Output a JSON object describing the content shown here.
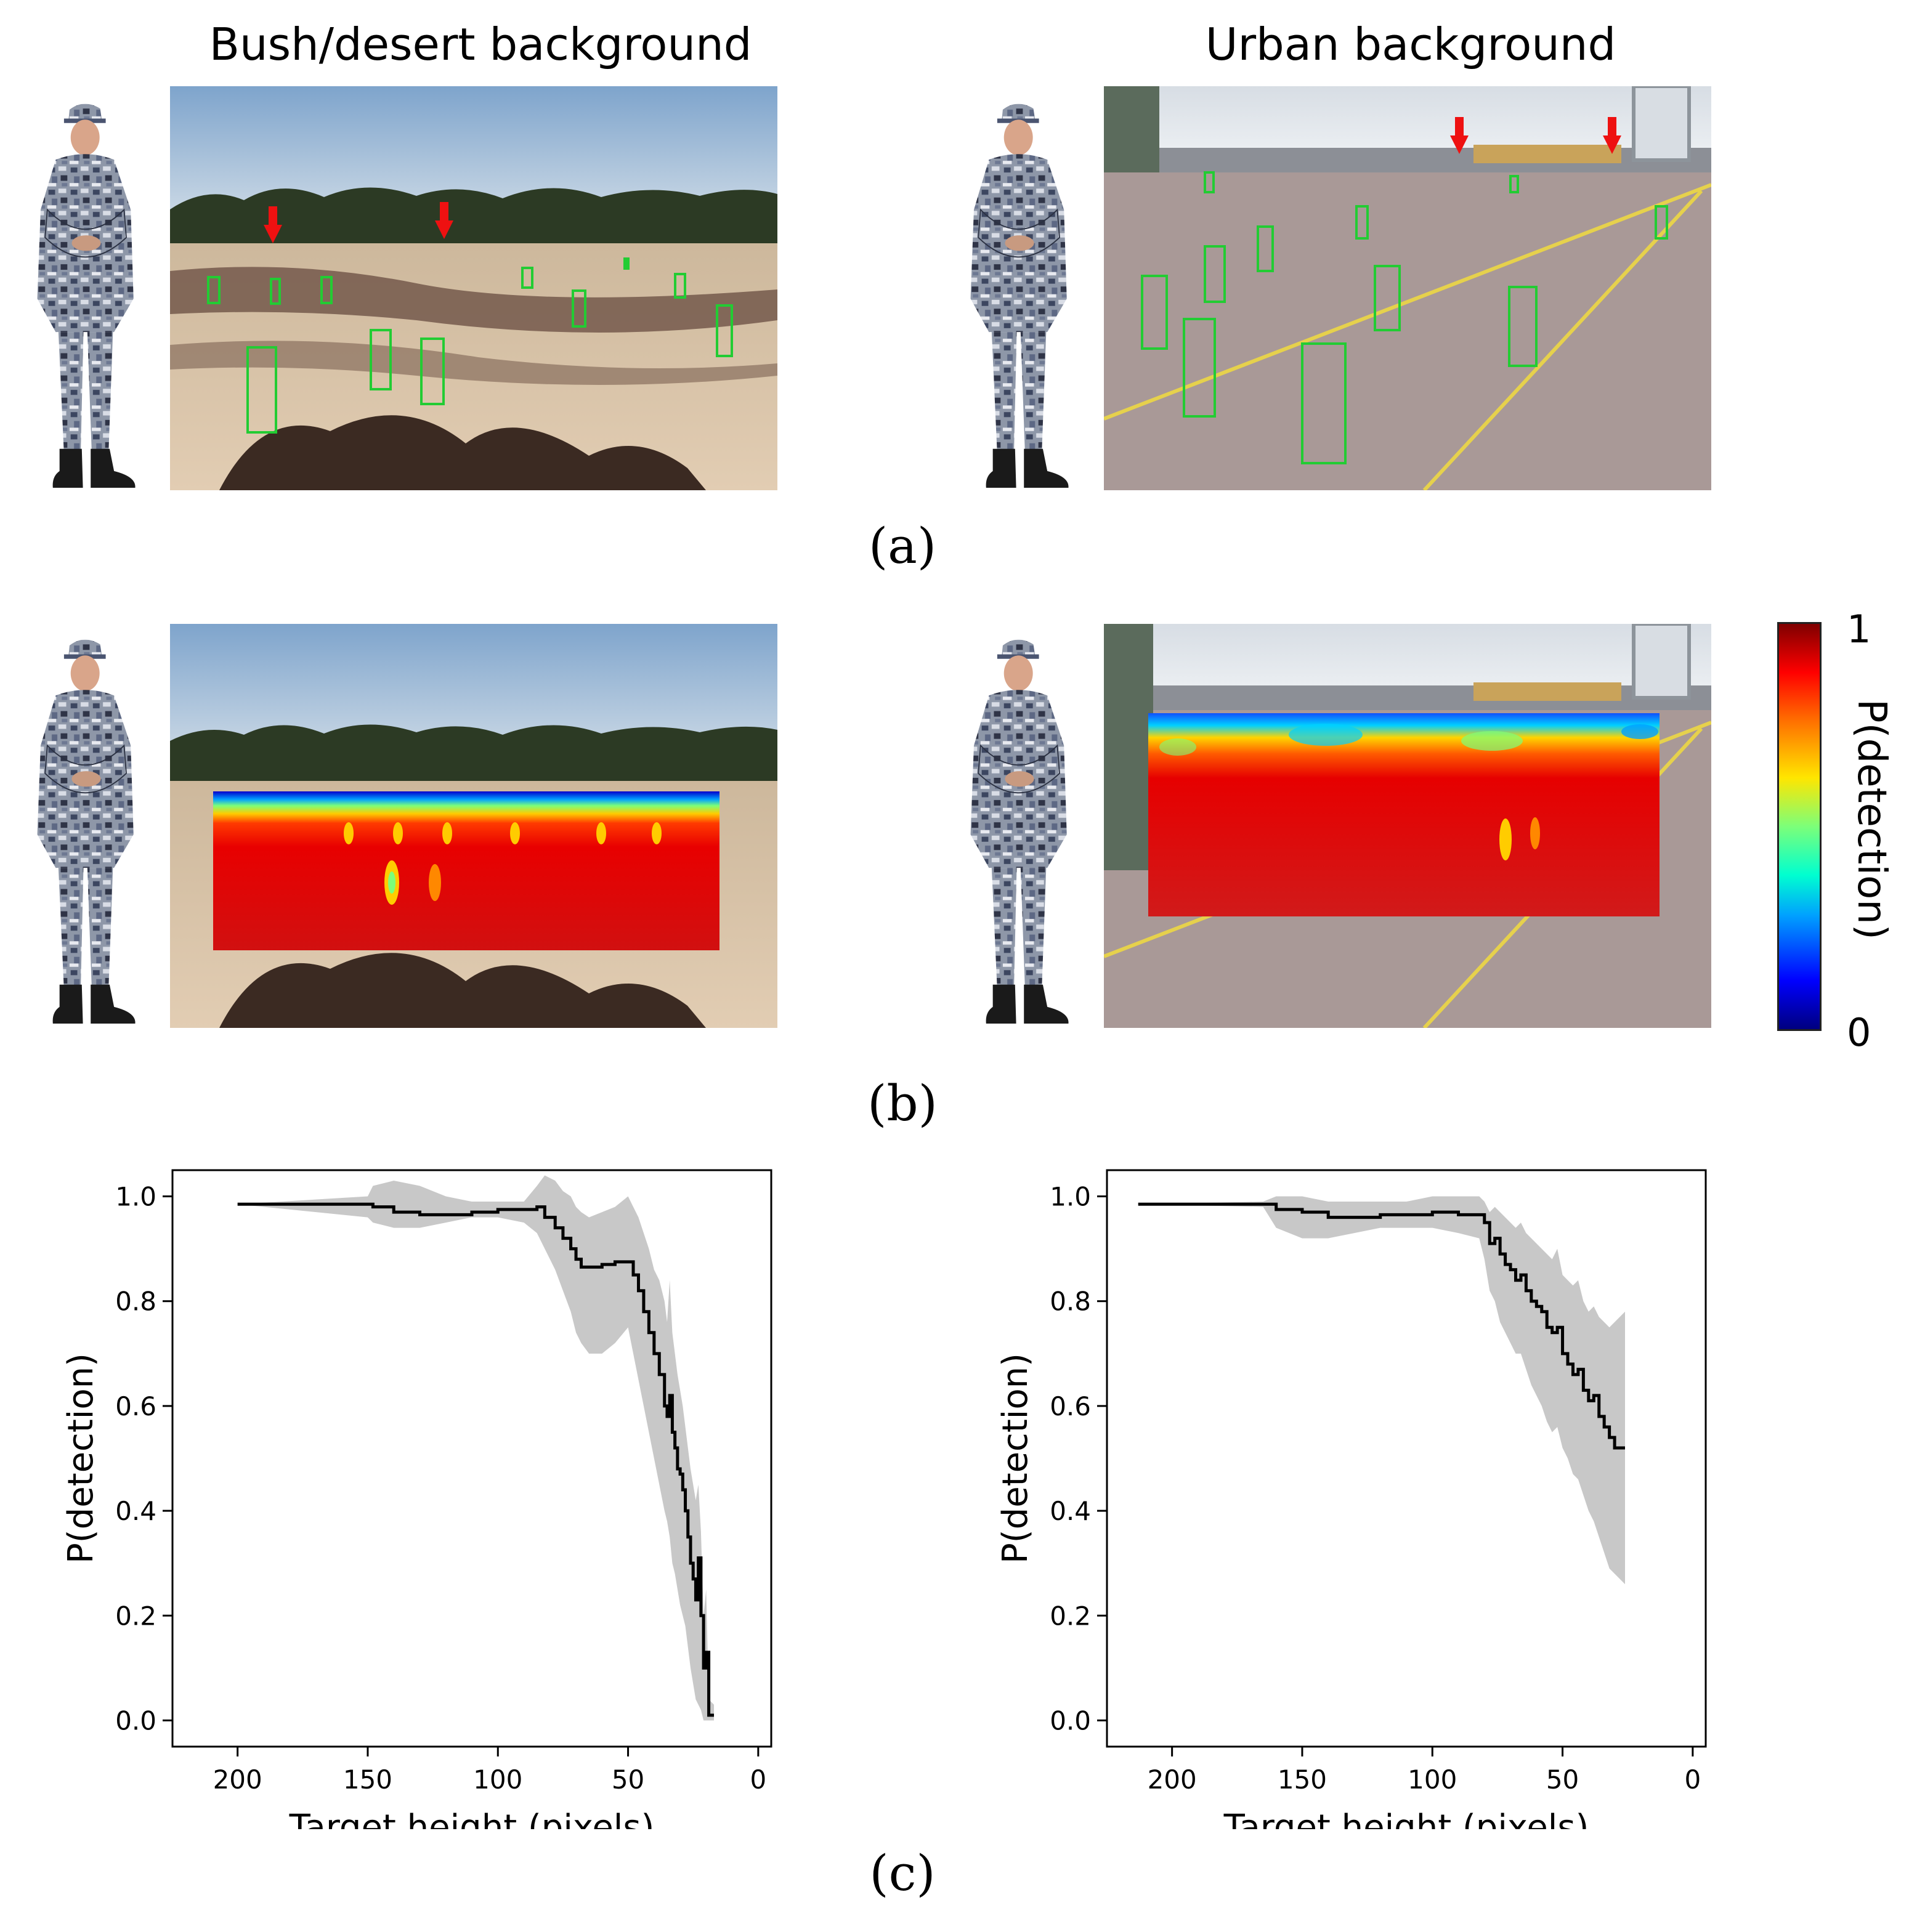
{
  "titles": {
    "left": "Bush/desert background",
    "right": "Urban background"
  },
  "panel_labels": {
    "a": "(a)",
    "b": "(b)",
    "c": "(c)"
  },
  "colorbar": {
    "label": "P(detection)",
    "max": "1",
    "min": "0",
    "colormap": "jet"
  },
  "icons": [
    "soldier-figure",
    "red-arrow-marker",
    "green-target-box"
  ],
  "colors": {
    "target_box": "#22cc33",
    "arrow": "#ee1111",
    "curve": "#000000",
    "band": "#c8c8c8"
  },
  "chart_data": [
    {
      "type": "line",
      "title": "",
      "xlabel": "Target height (pixels)",
      "ylabel": "P(detection)",
      "xlim": [
        225,
        -5
      ],
      "ylim": [
        -0.05,
        1.05
      ],
      "x_ticks": [
        200,
        150,
        100,
        50,
        0
      ],
      "y_ticks": [
        "0.0",
        "0.2",
        "0.4",
        "0.6",
        "0.8",
        "1.0"
      ],
      "series": [
        {
          "x": [
            200,
            150,
            148,
            140,
            130,
            120,
            110,
            100,
            90,
            85,
            82,
            78,
            75,
            72,
            70,
            68,
            65,
            60,
            55,
            50,
            48,
            46,
            44,
            42,
            40,
            38,
            36,
            35,
            34,
            33,
            32,
            31,
            30,
            29,
            28,
            27,
            26,
            25,
            24,
            23,
            22,
            21,
            20,
            19,
            17
          ],
          "y": [
            0.985,
            0.985,
            0.98,
            0.97,
            0.965,
            0.965,
            0.97,
            0.975,
            0.975,
            0.98,
            0.96,
            0.94,
            0.92,
            0.9,
            0.88,
            0.865,
            0.865,
            0.87,
            0.875,
            0.875,
            0.85,
            0.82,
            0.78,
            0.74,
            0.7,
            0.66,
            0.6,
            0.58,
            0.62,
            0.55,
            0.52,
            0.48,
            0.47,
            0.44,
            0.4,
            0.35,
            0.3,
            0.27,
            0.23,
            0.31,
            0.2,
            0.1,
            0.13,
            0.01,
            0.01
          ],
          "lower": [
            0.985,
            0.96,
            0.95,
            0.94,
            0.94,
            0.95,
            0.96,
            0.96,
            0.95,
            0.93,
            0.9,
            0.86,
            0.82,
            0.78,
            0.74,
            0.72,
            0.7,
            0.7,
            0.72,
            0.75,
            0.7,
            0.65,
            0.6,
            0.55,
            0.5,
            0.45,
            0.4,
            0.38,
            0.35,
            0.3,
            0.28,
            0.25,
            0.22,
            0.2,
            0.18,
            0.14,
            0.1,
            0.07,
            0.04,
            0.03,
            0.02,
            0.0,
            0.0,
            0.0,
            0.0
          ],
          "upper": [
            0.985,
            1.0,
            1.02,
            1.03,
            1.02,
            1.0,
            0.99,
            0.99,
            0.99,
            1.02,
            1.04,
            1.03,
            1.01,
            1.0,
            0.98,
            0.97,
            0.96,
            0.97,
            0.98,
            1.0,
            0.98,
            0.96,
            0.93,
            0.9,
            0.86,
            0.84,
            0.8,
            0.76,
            0.84,
            0.74,
            0.7,
            0.66,
            0.63,
            0.6,
            0.56,
            0.52,
            0.48,
            0.45,
            0.42,
            0.45,
            0.36,
            0.2,
            0.25,
            0.04,
            0.03
          ]
        }
      ]
    },
    {
      "type": "line",
      "title": "",
      "xlabel": "Target height (pixels)",
      "ylabel": "P(detection)",
      "xlim": [
        225,
        -5
      ],
      "ylim": [
        -0.05,
        1.05
      ],
      "x_ticks": [
        200,
        150,
        100,
        50,
        0
      ],
      "y_ticks": [
        "0.0",
        "0.2",
        "0.4",
        "0.6",
        "0.8",
        "1.0"
      ],
      "series": [
        {
          "x": [
            213,
            165,
            160,
            150,
            140,
            130,
            120,
            110,
            100,
            90,
            82,
            80,
            78,
            76,
            74,
            72,
            70,
            68,
            66,
            64,
            62,
            60,
            58,
            56,
            54,
            52,
            50,
            48,
            46,
            44,
            42,
            40,
            38,
            36,
            34,
            32,
            30,
            28,
            26
          ],
          "y": [
            0.985,
            0.985,
            0.975,
            0.97,
            0.96,
            0.96,
            0.965,
            0.965,
            0.97,
            0.965,
            0.965,
            0.95,
            0.91,
            0.92,
            0.89,
            0.87,
            0.86,
            0.84,
            0.85,
            0.82,
            0.8,
            0.79,
            0.78,
            0.75,
            0.74,
            0.75,
            0.7,
            0.68,
            0.66,
            0.67,
            0.63,
            0.61,
            0.62,
            0.58,
            0.56,
            0.54,
            0.52,
            0.52,
            0.52
          ],
          "lower": [
            0.985,
            0.98,
            0.94,
            0.92,
            0.92,
            0.93,
            0.94,
            0.94,
            0.94,
            0.93,
            0.92,
            0.88,
            0.82,
            0.8,
            0.76,
            0.74,
            0.72,
            0.7,
            0.7,
            0.67,
            0.64,
            0.62,
            0.6,
            0.57,
            0.55,
            0.56,
            0.52,
            0.5,
            0.47,
            0.46,
            0.43,
            0.4,
            0.38,
            0.35,
            0.32,
            0.29,
            0.28,
            0.27,
            0.26
          ],
          "upper": [
            0.985,
            0.99,
            1.0,
            1.0,
            0.99,
            0.99,
            0.99,
            0.99,
            1.0,
            1.0,
            1.0,
            0.99,
            0.97,
            0.98,
            0.97,
            0.96,
            0.95,
            0.94,
            0.95,
            0.93,
            0.92,
            0.91,
            0.9,
            0.89,
            0.88,
            0.9,
            0.85,
            0.84,
            0.83,
            0.84,
            0.8,
            0.78,
            0.79,
            0.77,
            0.76,
            0.75,
            0.76,
            0.77,
            0.78
          ]
        }
      ]
    }
  ]
}
